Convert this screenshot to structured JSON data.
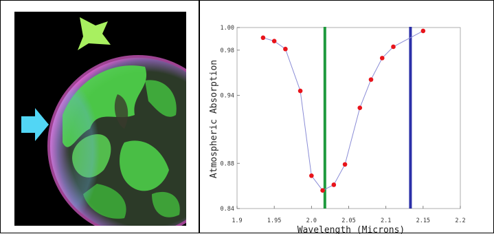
{
  "chart_data": {
    "type": "scatter",
    "title": "",
    "xlabel": "Wavelength (Microns)",
    "ylabel": "Atmospheric Absorption",
    "xlim": [
      1.9,
      2.2
    ],
    "ylim": [
      0.84,
      1.0
    ],
    "x_ticks": [
      "1.9",
      "1.95",
      "2.0",
      "2.05",
      "2.1",
      "2.15",
      "2.2"
    ],
    "y_ticks": [
      "0.84",
      "0.88",
      "0.94",
      "0.98",
      "1.00"
    ],
    "series": [
      {
        "x": [
          1.935,
          1.95,
          1.965,
          1.985,
          2.0,
          2.015,
          2.03,
          2.045,
          2.065,
          2.08,
          2.095,
          2.11,
          2.15
        ],
        "values": [
          0.991,
          0.988,
          0.981,
          0.944,
          0.869,
          0.856,
          0.861,
          0.879,
          0.929,
          0.954,
          0.973,
          0.983,
          0.997
        ],
        "marker_color": "#e8141b",
        "line_color": "#8a8cd6"
      }
    ],
    "vertical_lines": [
      {
        "x": 2.018,
        "color": "#1f9a3e"
      },
      {
        "x": 2.133,
        "color": "#2b2fa8"
      }
    ],
    "grid": false,
    "legend": "none"
  },
  "image_panel": {
    "description_icons": [
      "green-arrow-icon",
      "cyan-arrow-icon"
    ],
    "colors": {
      "planet_green": "#4fd64a",
      "rim_magenta": "#e060d0",
      "arrow_green": "#a8f060",
      "arrow_cyan": "#52d6f5"
    }
  }
}
